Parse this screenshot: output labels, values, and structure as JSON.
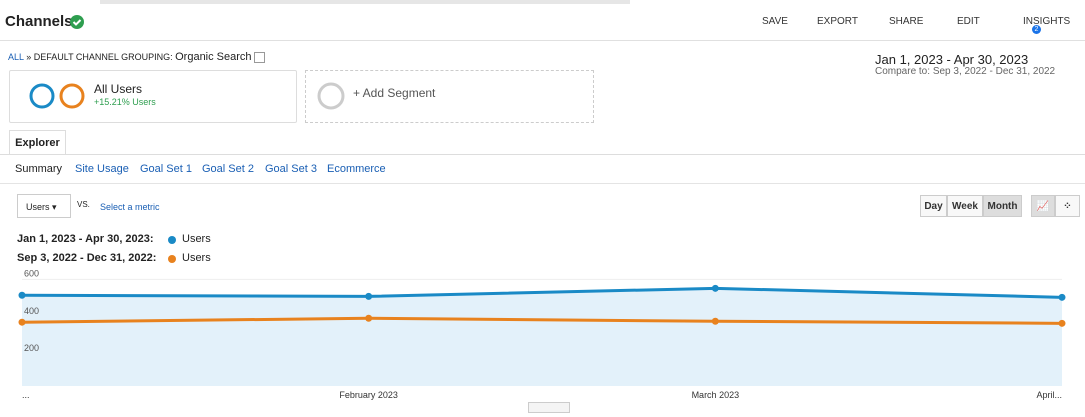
{
  "header": {
    "title": "Channels",
    "actions": [
      "SAVE",
      "EXPORT",
      "SHARE",
      "EDIT",
      "INSIGHTS"
    ],
    "insights_badge": "2"
  },
  "breadcrumb": {
    "root": "ALL",
    "separator": "»",
    "dimension": "DEFAULT CHANNEL GROUPING:",
    "value": "Organic Search"
  },
  "date_range": {
    "current": "Jan 1, 2023 - Apr 30, 2023",
    "compare_label": "Compare to:",
    "compare": "Sep 3, 2022 - Dec 31, 2022"
  },
  "segments": {
    "name": "All Users",
    "change": "+15.21% Users",
    "add": "+ Add Segment"
  },
  "tabs": {
    "main": "Explorer",
    "sub": [
      "Summary",
      "Site Usage",
      "Goal Set 1",
      "Goal Set 2",
      "Goal Set 3",
      "Ecommerce"
    ]
  },
  "metric": {
    "selected": "Users",
    "vs": "VS.",
    "select": "Select a metric"
  },
  "granularity": [
    "Day",
    "Week",
    "Month"
  ],
  "chart_data": {
    "type": "area",
    "categories": [
      "...",
      "February 2023",
      "March 2023",
      "April..."
    ],
    "series": [
      {
        "period": "Jan 1, 2023 - Apr 30, 2023:",
        "name": "Users",
        "color": "#1a8ac6",
        "values": [
          515,
          509,
          552,
          504
        ]
      },
      {
        "period": "Sep 3, 2022 - Dec 31, 2022:",
        "name": "Users",
        "color": "#e8821e",
        "values": [
          371,
          392,
          376,
          365
        ]
      }
    ],
    "ylim": [
      30,
      650
    ],
    "yticks": [
      200,
      400,
      600
    ],
    "grid": true
  }
}
